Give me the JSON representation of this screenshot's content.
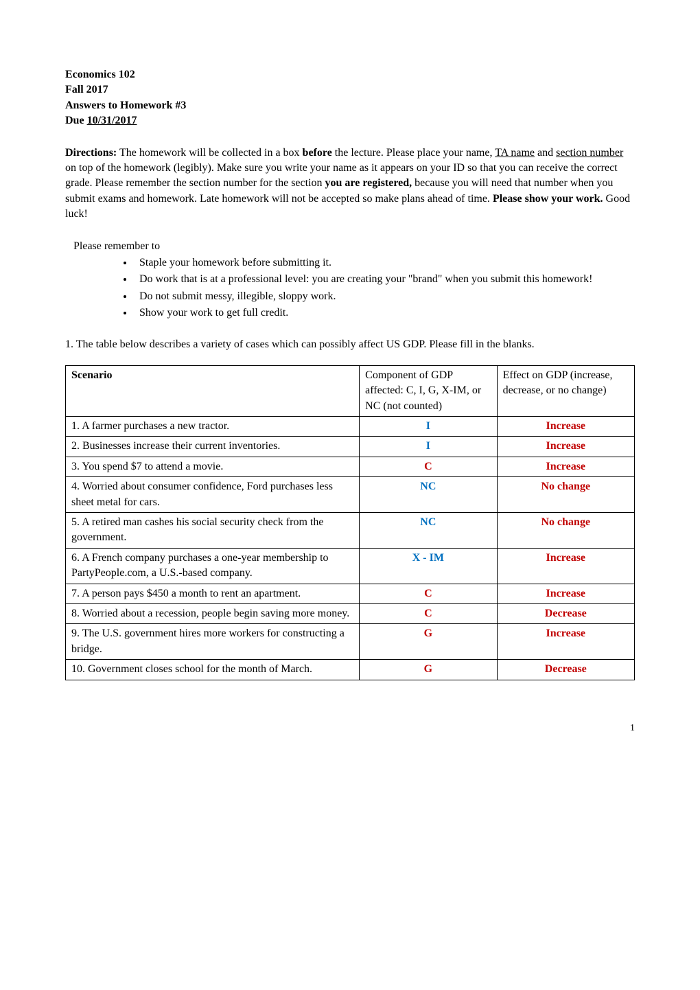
{
  "header": {
    "course": "Economics 102",
    "term": "Fall 2017",
    "title": "Answers to Homework #3",
    "due_prefix": "Due ",
    "due_date": "10/31/2017"
  },
  "directions": {
    "label": "Directions:",
    "text_parts": [
      " The homework will be collected in a box ",
      "before",
      " the lecture. Please place your name, ",
      "TA name",
      " and ",
      "section number",
      " on top of the homework (legibly). Make sure you write your name as it appears on your ID so that you can receive the correct grade. Please remember the section number for the section ",
      "you are registered,",
      " because you will need that number when you submit exams and homework. Late homework will not be accepted so make plans ahead of time. ",
      "Please show your work.",
      " Good luck!"
    ]
  },
  "reminder": {
    "intro": "Please remember to",
    "bullets": [
      "Staple your homework before submitting it.",
      "Do work that is at a professional level: you are creating your \"brand\" when you submit this homework!",
      "Do not submit messy, illegible, sloppy work.",
      "Show your work to get full credit."
    ]
  },
  "question1": {
    "text": "1. The table below describes a variety of cases which can possibly affect US GDP. Please fill in the blanks."
  },
  "table": {
    "headers": {
      "scenario": "Scenario",
      "component": "Component of GDP affected: C, I, G, X-IM, or NC (not counted)",
      "effect": "Effect on GDP (increase, decrease, or no change)"
    },
    "rows": [
      {
        "scenario": "1. A farmer purchases a new tractor.",
        "component": "I",
        "component_color": "blue",
        "effect": "Increase",
        "effect_color": "red"
      },
      {
        "scenario": "2. Businesses increase their current inventories.",
        "component": "I",
        "component_color": "blue",
        "effect": "Increase",
        "effect_color": "red"
      },
      {
        "scenario": "3. You spend $7 to attend a movie.",
        "component": "C",
        "component_color": "red",
        "effect": "Increase",
        "effect_color": "red"
      },
      {
        "scenario": "4. Worried about consumer confidence, Ford purchases less sheet metal for cars.",
        "component": "NC",
        "component_color": "blue",
        "effect": "No change",
        "effect_color": "red"
      },
      {
        "scenario": "5. A retired man cashes his social security check from the government.",
        "component": "NC",
        "component_color": "blue",
        "effect": "No change",
        "effect_color": "red"
      },
      {
        "scenario": "6. A French company purchases a one-year membership to PartyPeople.com, a U.S.-based company.",
        "component": "X - IM",
        "component_color": "blue",
        "effect": "Increase",
        "effect_color": "red"
      },
      {
        "scenario": "7. A person pays $450 a month to rent an apartment.",
        "component": "C",
        "component_color": "red",
        "effect": "Increase",
        "effect_color": "red"
      },
      {
        "scenario": "8. Worried about a recession, people begin saving more money.",
        "component": "C",
        "component_color": "red",
        "effect": "Decrease",
        "effect_color": "red"
      },
      {
        "scenario": "9. The U.S. government hires more workers for constructing a bridge.",
        "component": "G",
        "component_color": "red",
        "effect": "Increase",
        "effect_color": "red"
      },
      {
        "scenario": "10. Government closes school for the month of March.",
        "component": "G",
        "component_color": "red",
        "effect": "Decrease",
        "effect_color": "red"
      }
    ]
  },
  "page_number": "1",
  "colors": {
    "red": "#c00000",
    "blue": "#0070c0",
    "text": "#000000",
    "background": "#ffffff",
    "border": "#000000"
  }
}
